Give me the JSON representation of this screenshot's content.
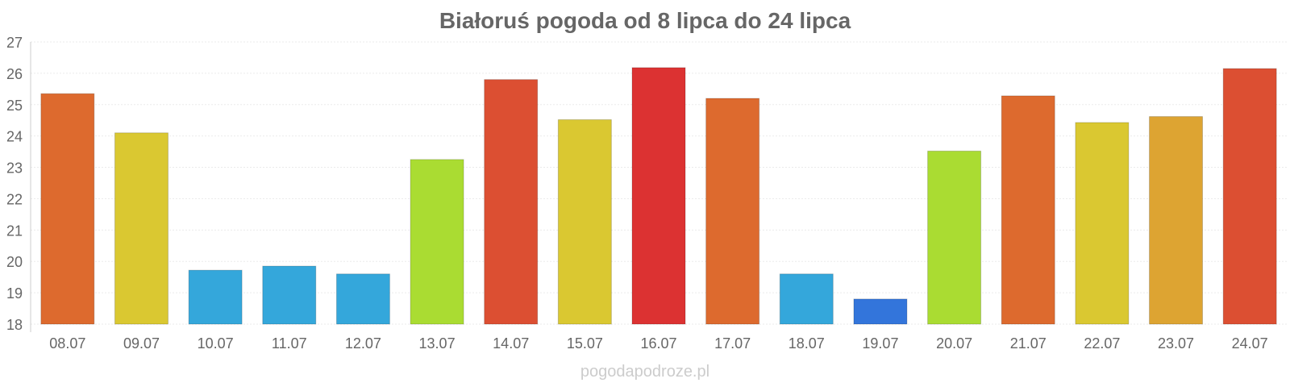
{
  "chart_data": {
    "type": "bar",
    "title": "Białoruś pogoda od 8 lipca do 24 lipca",
    "xlabel": "",
    "ylabel": "",
    "categories": [
      "08.07",
      "09.07",
      "10.07",
      "11.07",
      "12.07",
      "13.07",
      "14.07",
      "15.07",
      "16.07",
      "17.07",
      "18.07",
      "19.07",
      "20.07",
      "21.07",
      "22.07",
      "23.07",
      "24.07"
    ],
    "values": [
      25.35,
      24.1,
      19.72,
      19.85,
      19.6,
      23.25,
      25.8,
      24.52,
      26.18,
      25.2,
      19.6,
      18.8,
      23.52,
      25.28,
      24.43,
      24.62,
      26.15
    ],
    "colors": [
      "#dd6a2e",
      "#dac831",
      "#34a7db",
      "#34a7db",
      "#34a7db",
      "#aadc32",
      "#dc4f32",
      "#dac831",
      "#dc3232",
      "#dd6a2e",
      "#34a7db",
      "#3375db",
      "#aadc32",
      "#dd6a2e",
      "#dac831",
      "#dda432",
      "#dc4f32"
    ],
    "ylim": [
      18,
      27
    ],
    "yticks": [
      "18",
      "19",
      "20",
      "21",
      "22",
      "23",
      "24",
      "25",
      "26",
      "27"
    ],
    "grid": true,
    "legend": "none"
  },
  "watermark": "pogodapodroze.pl"
}
